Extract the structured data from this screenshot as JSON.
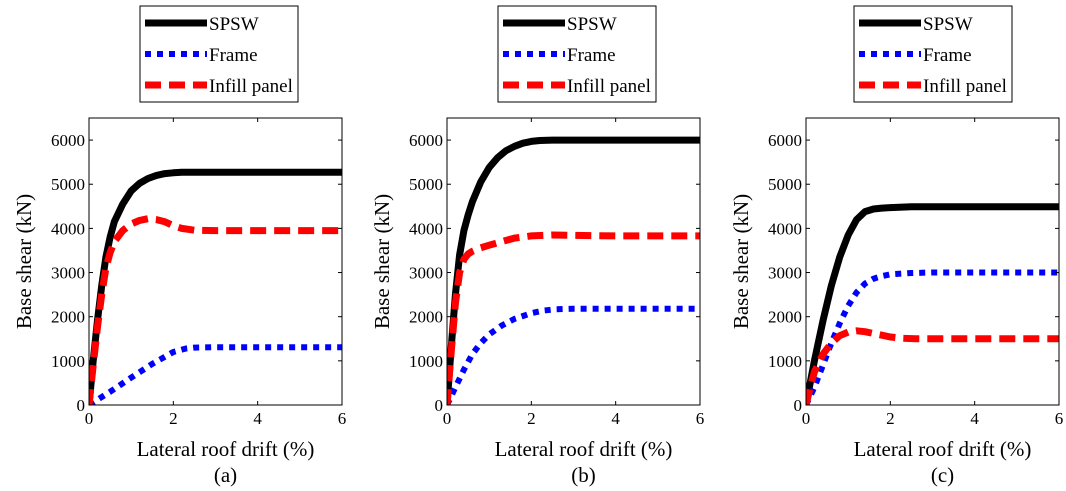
{
  "chart_data": [
    {
      "type": "line",
      "caption": "(a)",
      "xlabel": "Lateral roof drift (%)",
      "ylabel": "Base shear (kN)",
      "xlim": [
        0,
        6
      ],
      "ylim": [
        0,
        6500
      ],
      "xticks": [
        0,
        2,
        4,
        6
      ],
      "yticks": [
        0,
        1000,
        2000,
        3000,
        4000,
        5000,
        6000
      ],
      "legend_position": "top",
      "series": [
        {
          "name": "SPSW",
          "color": "#000000",
          "style": "solid",
          "x": [
            0,
            0.1,
            0.2,
            0.3,
            0.4,
            0.5,
            0.6,
            0.8,
            1.0,
            1.2,
            1.4,
            1.6,
            1.8,
            2.0,
            2.2,
            2.5,
            3,
            4,
            5,
            6
          ],
          "y": [
            0,
            1000,
            1900,
            2700,
            3350,
            3800,
            4150,
            4550,
            4850,
            5020,
            5130,
            5200,
            5240,
            5260,
            5270,
            5270,
            5270,
            5270,
            5270,
            5270
          ]
        },
        {
          "name": "Frame",
          "color": "#0000ff",
          "style": "dotted",
          "x": [
            0,
            0.5,
            1.0,
            1.5,
            2.0,
            2.3,
            2.5,
            3,
            4,
            5,
            6
          ],
          "y": [
            0,
            300,
            620,
            930,
            1200,
            1280,
            1300,
            1310,
            1310,
            1310,
            1310
          ]
        },
        {
          "name": "Infill panel",
          "color": "#ff0000",
          "style": "dashed",
          "x": [
            0,
            0.1,
            0.2,
            0.3,
            0.4,
            0.5,
            0.6,
            0.8,
            1.0,
            1.2,
            1.4,
            1.6,
            1.8,
            2.0,
            2.2,
            2.5,
            3,
            4,
            5,
            6
          ],
          "y": [
            0,
            900,
            1750,
            2500,
            3100,
            3450,
            3700,
            3950,
            4100,
            4180,
            4220,
            4200,
            4150,
            4060,
            4000,
            3960,
            3950,
            3950,
            3950,
            3950
          ]
        }
      ]
    },
    {
      "type": "line",
      "caption": "(b)",
      "xlabel": "Lateral roof drift (%)",
      "ylabel": "Base shear (kN)",
      "xlim": [
        0,
        6
      ],
      "ylim": [
        0,
        6500
      ],
      "xticks": [
        0,
        2,
        4,
        6
      ],
      "yticks": [
        0,
        1000,
        2000,
        3000,
        4000,
        5000,
        6000
      ],
      "legend_position": "top",
      "series": [
        {
          "name": "SPSW",
          "color": "#000000",
          "style": "solid",
          "x": [
            0,
            0.1,
            0.2,
            0.3,
            0.4,
            0.5,
            0.6,
            0.8,
            1.0,
            1.2,
            1.4,
            1.6,
            1.8,
            2.0,
            2.2,
            2.5,
            3,
            4,
            5,
            6
          ],
          "y": [
            0,
            1300,
            2500,
            3400,
            3950,
            4300,
            4600,
            5050,
            5380,
            5600,
            5760,
            5860,
            5930,
            5970,
            5990,
            6000,
            6000,
            6000,
            6000,
            6000
          ]
        },
        {
          "name": "Frame",
          "color": "#0000ff",
          "style": "dotted",
          "x": [
            0,
            0.2,
            0.4,
            0.6,
            0.8,
            1.0,
            1.3,
            1.6,
            2.0,
            2.3,
            2.6,
            3,
            4,
            5,
            6
          ],
          "y": [
            0,
            400,
            800,
            1150,
            1400,
            1600,
            1800,
            1950,
            2080,
            2140,
            2170,
            2180,
            2180,
            2180,
            2180
          ]
        },
        {
          "name": "Infill panel",
          "color": "#ff0000",
          "style": "dashed",
          "x": [
            0,
            0.1,
            0.2,
            0.3,
            0.4,
            0.5,
            0.6,
            0.8,
            1.0,
            1.3,
            1.6,
            2.0,
            2.5,
            3,
            4,
            5,
            6
          ],
          "y": [
            0,
            1200,
            2300,
            3000,
            3300,
            3420,
            3480,
            3560,
            3620,
            3700,
            3780,
            3830,
            3850,
            3840,
            3830,
            3830,
            3830
          ]
        }
      ]
    },
    {
      "type": "line",
      "caption": "(c)",
      "xlabel": "Lateral roof drift (%)",
      "ylabel": "Base shear (kN)",
      "xlim": [
        0,
        6
      ],
      "ylim": [
        0,
        6500
      ],
      "xticks": [
        0,
        2,
        4,
        6
      ],
      "yticks": [
        0,
        1000,
        2000,
        3000,
        4000,
        5000,
        6000
      ],
      "legend_position": "top",
      "series": [
        {
          "name": "SPSW",
          "color": "#000000",
          "style": "solid",
          "x": [
            0,
            0.1,
            0.2,
            0.4,
            0.6,
            0.8,
            1.0,
            1.2,
            1.4,
            1.6,
            1.8,
            2.0,
            2.5,
            3,
            4,
            5,
            6
          ],
          "y": [
            0,
            500,
            1000,
            1900,
            2700,
            3350,
            3850,
            4200,
            4380,
            4440,
            4460,
            4470,
            4490,
            4490,
            4490,
            4490,
            4490
          ]
        },
        {
          "name": "Frame",
          "color": "#0000ff",
          "style": "dotted",
          "x": [
            0,
            0.2,
            0.4,
            0.6,
            0.8,
            1.0,
            1.2,
            1.4,
            1.6,
            1.8,
            2.0,
            2.5,
            3,
            4,
            5,
            6
          ],
          "y": [
            0,
            400,
            900,
            1400,
            1850,
            2250,
            2550,
            2750,
            2860,
            2920,
            2960,
            2990,
            3000,
            3000,
            3000,
            3000
          ]
        },
        {
          "name": "Infill panel",
          "color": "#ff0000",
          "style": "dashed",
          "x": [
            0,
            0.1,
            0.2,
            0.4,
            0.6,
            0.8,
            1.0,
            1.2,
            1.4,
            1.6,
            1.8,
            2.0,
            2.3,
            2.6,
            3,
            4,
            5,
            6
          ],
          "y": [
            0,
            400,
            750,
            1150,
            1400,
            1570,
            1650,
            1680,
            1660,
            1620,
            1580,
            1540,
            1510,
            1500,
            1500,
            1500,
            1500,
            1500
          ]
        }
      ]
    }
  ]
}
